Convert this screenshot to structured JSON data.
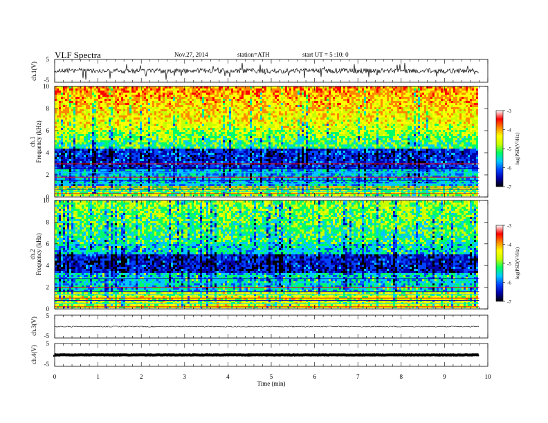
{
  "header": {
    "title": "VLF Spectra",
    "date": "Nov.27, 2014",
    "station": "station=ATH",
    "start": "start UT = 5 :10: 0"
  },
  "chart_data": [
    {
      "type": "line",
      "panel": "ch.1 waveform",
      "ylabel": "ch.1(V)",
      "ylim": [
        -5,
        5
      ],
      "yticks": [
        "5",
        "-5"
      ],
      "color": "#000000"
    },
    {
      "type": "heatmap",
      "panel": "ch.1 spectrogram",
      "ylabel": "ch.1\nFrequency (kHz)",
      "ylim": [
        0,
        10
      ],
      "yticks": [
        "0",
        "2",
        "4",
        "6",
        "8",
        "10"
      ],
      "colorbar": {
        "label": "log(PSD(V²/Hz)",
        "range": [
          -7,
          -3
        ],
        "ticks": [
          "-3",
          "-4",
          "-5",
          "-6",
          "-7"
        ],
        "colors": [
          "#000000",
          "#0000aa",
          "#0044ff",
          "#00c8ff",
          "#00ff64",
          "#c8ff00",
          "#ffff00",
          "#ff8800",
          "#ff0000",
          "#ffffff"
        ]
      }
    },
    {
      "type": "heatmap",
      "panel": "ch.2 spectrogram",
      "ylabel": "ch.2\nFrequency (kHz)",
      "ylim": [
        0,
        10
      ],
      "yticks": [
        "0",
        "2",
        "4",
        "6",
        "8",
        "10"
      ],
      "colorbar": {
        "label": "log(PSD(V²/Hz)",
        "range": [
          -7,
          -3
        ],
        "ticks": [
          "-3",
          "-4",
          "-5",
          "-6",
          "-7"
        ],
        "colors": [
          "#000000",
          "#0000aa",
          "#0044ff",
          "#00c8ff",
          "#00ff64",
          "#c8ff00",
          "#ffff00",
          "#ff8800",
          "#ff0000",
          "#ffffff"
        ]
      }
    },
    {
      "type": "line",
      "panel": "ch.3 waveform",
      "ylabel": "ch.3(V)",
      "ylim": [
        -5,
        5
      ],
      "yticks": [
        "5",
        "-5"
      ],
      "color": "#000000"
    },
    {
      "type": "line",
      "panel": "ch.4 waveform",
      "ylabel": "ch.4(V)",
      "ylim": [
        -5,
        5
      ],
      "yticks": [
        "5",
        "-5"
      ],
      "color": "#000000"
    }
  ],
  "x_axis": {
    "label": "Time (min)",
    "range": [
      0,
      10
    ],
    "data_end": 9.8,
    "ticks": [
      "0",
      "1",
      "2",
      "3",
      "4",
      "5",
      "6",
      "7",
      "8",
      "9",
      "10"
    ]
  }
}
